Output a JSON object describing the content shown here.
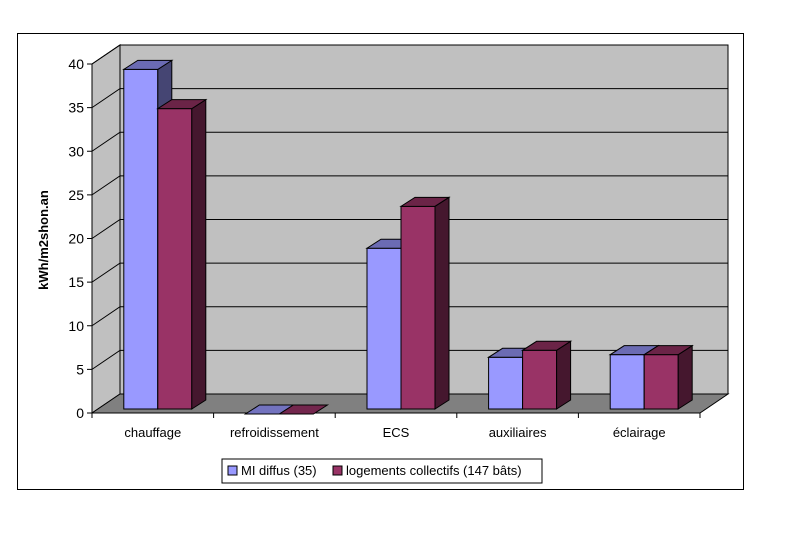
{
  "chart_data": {
    "type": "bar",
    "style": "3d-clustered-column",
    "categories": [
      "chauffage",
      "refroidissement",
      "ECS",
      "auxiliaires",
      "éclairage"
    ],
    "series": [
      {
        "name": "MI diffus (35)",
        "values": [
          39.5,
          0,
          19,
          6.5,
          6.8
        ],
        "color": "#9999ff"
      },
      {
        "name": "logements collectifs (147 bâts)",
        "values": [
          35,
          0,
          23.8,
          7.3,
          6.8
        ],
        "color": "#993366"
      }
    ],
    "ylabel": "kWh/m2shon.an",
    "xlabel": "",
    "ylim": [
      0,
      40
    ],
    "yticks": [
      0,
      5,
      10,
      15,
      20,
      25,
      30,
      35,
      40
    ],
    "grid": true,
    "legend": "bottom",
    "wall_color": "#c0c0c0",
    "floor_color": "#808080"
  }
}
